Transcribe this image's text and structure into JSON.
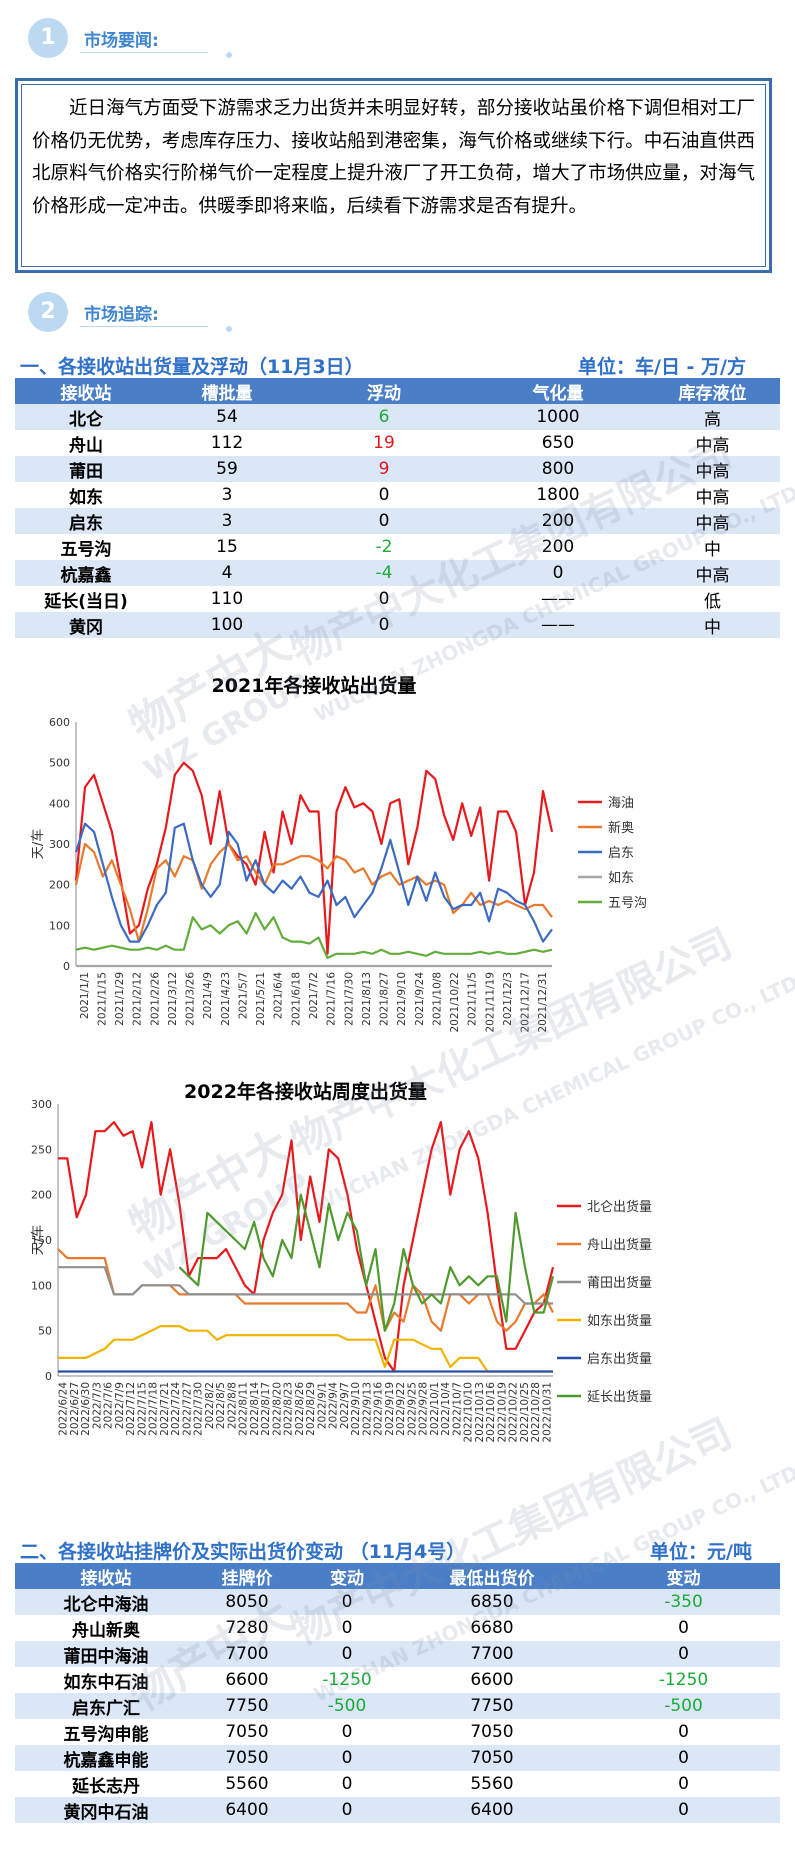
{
  "section1": {
    "num": "1",
    "title": "市场要闻:"
  },
  "news": "近日海气方面受下游需求乏力出货并未明显好转，部分接收站虽价格下调但相对工厂价格仍无优势，考虑库存压力、接收站船到港密集，海气价格或继续下行。中石油直供西北原料气价格实行阶梯气价一定程度上提升液厂了开工负荷，增大了市场供应量，对海气价格形成一定冲击。供暖季即将来临，后续看下游需求是否有提升。",
  "section2": {
    "num": "2",
    "title": "市场追踪:"
  },
  "table1": {
    "title": "一、各接收站出货量及浮动（11月3日）",
    "unit": "单位：车/日 - 万/方",
    "headers": [
      "接收站",
      "槽批量",
      "浮动",
      "气化量",
      "库存液位"
    ],
    "rows": [
      {
        "name": "北仑",
        "batch": "54",
        "change": "6",
        "dir": "up",
        "gas": "1000",
        "level": "高"
      },
      {
        "name": "舟山",
        "batch": "112",
        "change": "19",
        "dir": "down",
        "gas": "650",
        "level": "中高"
      },
      {
        "name": "莆田",
        "batch": "59",
        "change": "9",
        "dir": "down",
        "gas": "800",
        "level": "中高"
      },
      {
        "name": "如东",
        "batch": "3",
        "change": "0",
        "dir": "none",
        "gas": "1800",
        "level": "中高"
      },
      {
        "name": "启东",
        "batch": "3",
        "change": "0",
        "dir": "none",
        "gas": "200",
        "level": "中高"
      },
      {
        "name": "五号沟",
        "batch": "15",
        "change": "-2",
        "dir": "up",
        "gas": "200",
        "level": "中"
      },
      {
        "name": "杭嘉鑫",
        "batch": "4",
        "change": "-4",
        "dir": "up",
        "gas": "0",
        "level": "中高"
      },
      {
        "name": "延长(当日)",
        "batch": "110",
        "change": "0",
        "dir": "none",
        "gas": "——",
        "level": "低"
      },
      {
        "name": "黄冈",
        "batch": "100",
        "change": "0",
        "dir": "none",
        "gas": "——",
        "level": "中"
      }
    ]
  },
  "colors": {
    "accent": "#4a7fc8",
    "title_blue": "#2f70c8",
    "up": "#1aab3b",
    "down": "#e2161b"
  },
  "watermark": {
    "cn": "物产中大化工集团有限公司",
    "en": "WUCHAN ZHONGDA CHEMICAL GROUP CO., LTD.",
    "logo_cn": "物产中大",
    "logo_en": "WZ GROUP"
  },
  "chart_data": [
    {
      "type": "line",
      "title": "2021年各接收站出货量",
      "ylabel": "天/车",
      "ylim": [
        0,
        600
      ],
      "yticks": [
        0,
        100,
        200,
        300,
        400,
        500,
        600
      ],
      "x_ticks": [
        "2021/1/1",
        "2021/1/15",
        "2021/1/29",
        "2021/2/12",
        "2021/2/26",
        "2021/3/12",
        "2021/3/26",
        "2021/4/9",
        "2021/4/23",
        "2021/5/7",
        "2021/5/21",
        "2021/6/4",
        "2021/6/18",
        "2021/7/2",
        "2021/7/16",
        "2021/7/30",
        "2021/8/13",
        "2021/8/27",
        "2021/9/10",
        "2021/9/24",
        "2021/10/8",
        "2021/10/22",
        "2021/11/5",
        "2021/11/19",
        "2021/12/3",
        "2021/12/17",
        "2021/12/31"
      ],
      "legend": "right",
      "series": [
        {
          "name": "海油",
          "color": "#e8191c",
          "values": [
            210,
            440,
            470,
            400,
            330,
            210,
            80,
            100,
            190,
            250,
            340,
            470,
            500,
            480,
            420,
            300,
            430,
            300,
            270,
            250,
            200,
            330,
            230,
            380,
            300,
            420,
            380,
            380,
            30,
            380,
            440,
            390,
            400,
            380,
            300,
            400,
            410,
            250,
            340,
            480,
            460,
            370,
            310,
            400,
            320,
            390,
            210,
            380,
            380,
            330,
            150,
            230,
            430,
            330
          ]
        },
        {
          "name": "新奥",
          "color": "#e87a2e",
          "values": [
            200,
            300,
            280,
            220,
            260,
            200,
            140,
            60,
            140,
            240,
            260,
            220,
            270,
            260,
            190,
            250,
            280,
            300,
            260,
            270,
            230,
            200,
            250,
            250,
            260,
            270,
            270,
            260,
            240,
            270,
            260,
            230,
            240,
            200,
            220,
            230,
            200,
            210,
            220,
            200,
            210,
            200,
            130,
            150,
            180,
            150,
            160,
            150,
            160,
            150,
            140,
            150,
            150,
            120
          ]
        },
        {
          "name": "启东",
          "color": "#3c6bc4",
          "values": [
            280,
            350,
            330,
            250,
            170,
            100,
            60,
            60,
            100,
            150,
            180,
            340,
            350,
            260,
            200,
            170,
            200,
            330,
            300,
            210,
            260,
            200,
            180,
            210,
            190,
            220,
            180,
            170,
            210,
            150,
            170,
            120,
            150,
            180,
            240,
            310,
            230,
            150,
            220,
            160,
            230,
            170,
            140,
            150,
            150,
            180,
            110,
            190,
            180,
            160,
            150,
            110,
            60,
            90
          ]
        },
        {
          "name": "如东",
          "color": "#a8a8a8",
          "values": [
            0,
            0,
            0,
            0,
            0,
            0,
            0,
            0,
            0,
            0,
            0,
            0,
            0,
            0,
            0,
            0,
            0,
            0,
            0,
            0,
            0,
            0,
            0,
            0,
            0,
            0,
            0,
            0,
            0,
            0,
            0,
            0,
            0,
            0,
            0,
            0,
            0,
            0,
            0,
            0,
            0,
            0,
            0,
            0,
            0,
            0,
            0,
            0,
            0,
            0,
            0,
            0,
            0,
            0
          ]
        },
        {
          "name": "五号沟",
          "color": "#62ad3b",
          "values": [
            40,
            45,
            40,
            45,
            50,
            45,
            40,
            40,
            45,
            40,
            50,
            40,
            40,
            120,
            90,
            100,
            80,
            100,
            110,
            80,
            130,
            90,
            120,
            70,
            60,
            60,
            55,
            70,
            20,
            30,
            30,
            30,
            35,
            30,
            40,
            30,
            30,
            35,
            30,
            25,
            35,
            30,
            30,
            30,
            30,
            35,
            30,
            35,
            30,
            30,
            35,
            40,
            35,
            40
          ]
        }
      ]
    },
    {
      "type": "line",
      "title": "2022年各接收站周度出货量",
      "ylabel": "天/车",
      "ylim": [
        0,
        300
      ],
      "yticks": [
        0,
        50,
        100,
        150,
        200,
        250,
        300
      ],
      "x_ticks": [
        "2022/6/24",
        "2022/6/27",
        "2022/6/30",
        "2022/7/3",
        "2022/7/6",
        "2022/7/9",
        "2022/7/12",
        "2022/7/15",
        "2022/7/18",
        "2022/7/21",
        "2022/7/24",
        "2022/7/27",
        "2022/7/30",
        "2022/8/2",
        "2022/8/5",
        "2022/8/8",
        "2022/8/11",
        "2022/8/14",
        "2022/8/17",
        "2022/8/20",
        "2022/8/23",
        "2022/8/26",
        "2022/8/29",
        "2022/9/1",
        "2022/9/4",
        "2022/9/7",
        "2022/9/10",
        "2022/9/13",
        "2022/9/16",
        "2022/9/19",
        "2022/9/22",
        "2022/9/25",
        "2022/9/28",
        "2022/10/1",
        "2022/10/4",
        "2022/10/7",
        "2022/10/10",
        "2022/10/13",
        "2022/10/16",
        "2022/10/19",
        "2022/10/22",
        "2022/10/25",
        "2022/10/28",
        "2022/10/31"
      ],
      "legend": "right",
      "series": [
        {
          "name": "北仑出货量",
          "color": "#e8191c",
          "values": [
            240,
            240,
            175,
            200,
            270,
            270,
            280,
            265,
            270,
            230,
            280,
            200,
            250,
            190,
            110,
            130,
            130,
            130,
            140,
            120,
            100,
            90,
            150,
            180,
            200,
            260,
            150,
            220,
            170,
            250,
            240,
            200,
            140,
            100,
            60,
            20,
            5,
            100,
            150,
            200,
            250,
            280,
            200,
            250,
            270,
            240,
            180,
            100,
            30,
            30,
            50,
            70,
            80,
            120
          ]
        },
        {
          "name": "舟山出货量",
          "color": "#e87a2e",
          "values": [
            140,
            130,
            130,
            130,
            130,
            130,
            90,
            90,
            90,
            100,
            100,
            100,
            100,
            90,
            90,
            90,
            90,
            90,
            90,
            90,
            80,
            80,
            80,
            80,
            80,
            80,
            80,
            80,
            80,
            80,
            80,
            80,
            70,
            70,
            100,
            50,
            70,
            60,
            100,
            90,
            60,
            50,
            90,
            90,
            80,
            90,
            90,
            60,
            50,
            60,
            80,
            80,
            90,
            70
          ]
        },
        {
          "name": "莆田出货量",
          "color": "#909090",
          "values": [
            120,
            120,
            120,
            120,
            120,
            120,
            90,
            90,
            90,
            100,
            100,
            100,
            100,
            100,
            90,
            90,
            90,
            90,
            90,
            90,
            90,
            90,
            90,
            90,
            90,
            90,
            90,
            90,
            90,
            90,
            90,
            90,
            90,
            90,
            90,
            90,
            90,
            90,
            90,
            90,
            90,
            90,
            90,
            90,
            90,
            90,
            90,
            90,
            90,
            90,
            80,
            80,
            80,
            80
          ]
        },
        {
          "name": "如东出货量",
          "color": "#f0b400",
          "values": [
            20,
            20,
            20,
            20,
            25,
            30,
            40,
            40,
            40,
            45,
            50,
            55,
            55,
            55,
            50,
            50,
            50,
            40,
            45,
            45,
            45,
            45,
            45,
            45,
            45,
            45,
            45,
            45,
            45,
            45,
            45,
            40,
            40,
            40,
            40,
            10,
            40,
            40,
            40,
            35,
            30,
            30,
            10,
            20,
            20,
            20,
            5,
            5,
            5,
            5,
            5,
            5,
            5,
            5
          ]
        },
        {
          "name": "启东出货量",
          "color": "#2850a8",
          "values": [
            5,
            5,
            5,
            5,
            5,
            5,
            5,
            5,
            5,
            5,
            5,
            5,
            5,
            5,
            5,
            5,
            5,
            5,
            5,
            5,
            5,
            5,
            5,
            5,
            5,
            5,
            5,
            5,
            5,
            5,
            5,
            5,
            5,
            5,
            5,
            5,
            5,
            5,
            5,
            5,
            5,
            5,
            5,
            5,
            5,
            5,
            5,
            5,
            5,
            5,
            5,
            5,
            5,
            5
          ]
        },
        {
          "name": "延长出货量",
          "color": "#4f9a2e",
          "values": [
            null,
            null,
            null,
            null,
            null,
            null,
            null,
            null,
            null,
            null,
            null,
            null,
            null,
            120,
            110,
            100,
            180,
            170,
            160,
            150,
            140,
            170,
            130,
            110,
            150,
            130,
            200,
            160,
            120,
            190,
            150,
            180,
            160,
            100,
            140,
            50,
            80,
            140,
            100,
            80,
            90,
            80,
            120,
            100,
            110,
            100,
            110,
            110,
            60,
            180,
            120,
            70,
            70,
            110
          ]
        }
      ]
    }
  ],
  "section_table2": {
    "title": "二、各接收站挂牌价及实际出货价变动  （11月4号）",
    "unit": "单位：元/吨",
    "headers": [
      "接收站",
      "挂牌价",
      "变动",
      "最低出货价",
      "变动"
    ],
    "rows": [
      {
        "name": "北仑中海油",
        "list": "8050",
        "lchg": "0",
        "ldir": "none",
        "min": "6850",
        "mchg": "-350",
        "mdir": "up"
      },
      {
        "name": "舟山新奥",
        "list": "7280",
        "lchg": "0",
        "ldir": "none",
        "min": "6680",
        "mchg": "0",
        "mdir": "none"
      },
      {
        "name": "莆田中海油",
        "list": "7700",
        "lchg": "0",
        "ldir": "none",
        "min": "7700",
        "mchg": "0",
        "mdir": "none"
      },
      {
        "name": "如东中石油",
        "list": "6600",
        "lchg": "-1250",
        "ldir": "up",
        "min": "6600",
        "mchg": "-1250",
        "mdir": "up"
      },
      {
        "name": "启东广汇",
        "list": "7750",
        "lchg": "-500",
        "ldir": "up",
        "min": "7750",
        "mchg": "-500",
        "mdir": "up"
      },
      {
        "name": "五号沟申能",
        "list": "7050",
        "lchg": "0",
        "ldir": "none",
        "min": "7050",
        "mchg": "0",
        "mdir": "none"
      },
      {
        "name": "杭嘉鑫申能",
        "list": "7050",
        "lchg": "0",
        "ldir": "none",
        "min": "7050",
        "mchg": "0",
        "mdir": "none"
      },
      {
        "name": "延长志丹",
        "list": "5560",
        "lchg": "0",
        "ldir": "none",
        "min": "5560",
        "mchg": "0",
        "mdir": "none"
      },
      {
        "name": "黄冈中石油",
        "list": "6400",
        "lchg": "0",
        "ldir": "none",
        "min": "6400",
        "mchg": "0",
        "mdir": "none"
      }
    ]
  }
}
